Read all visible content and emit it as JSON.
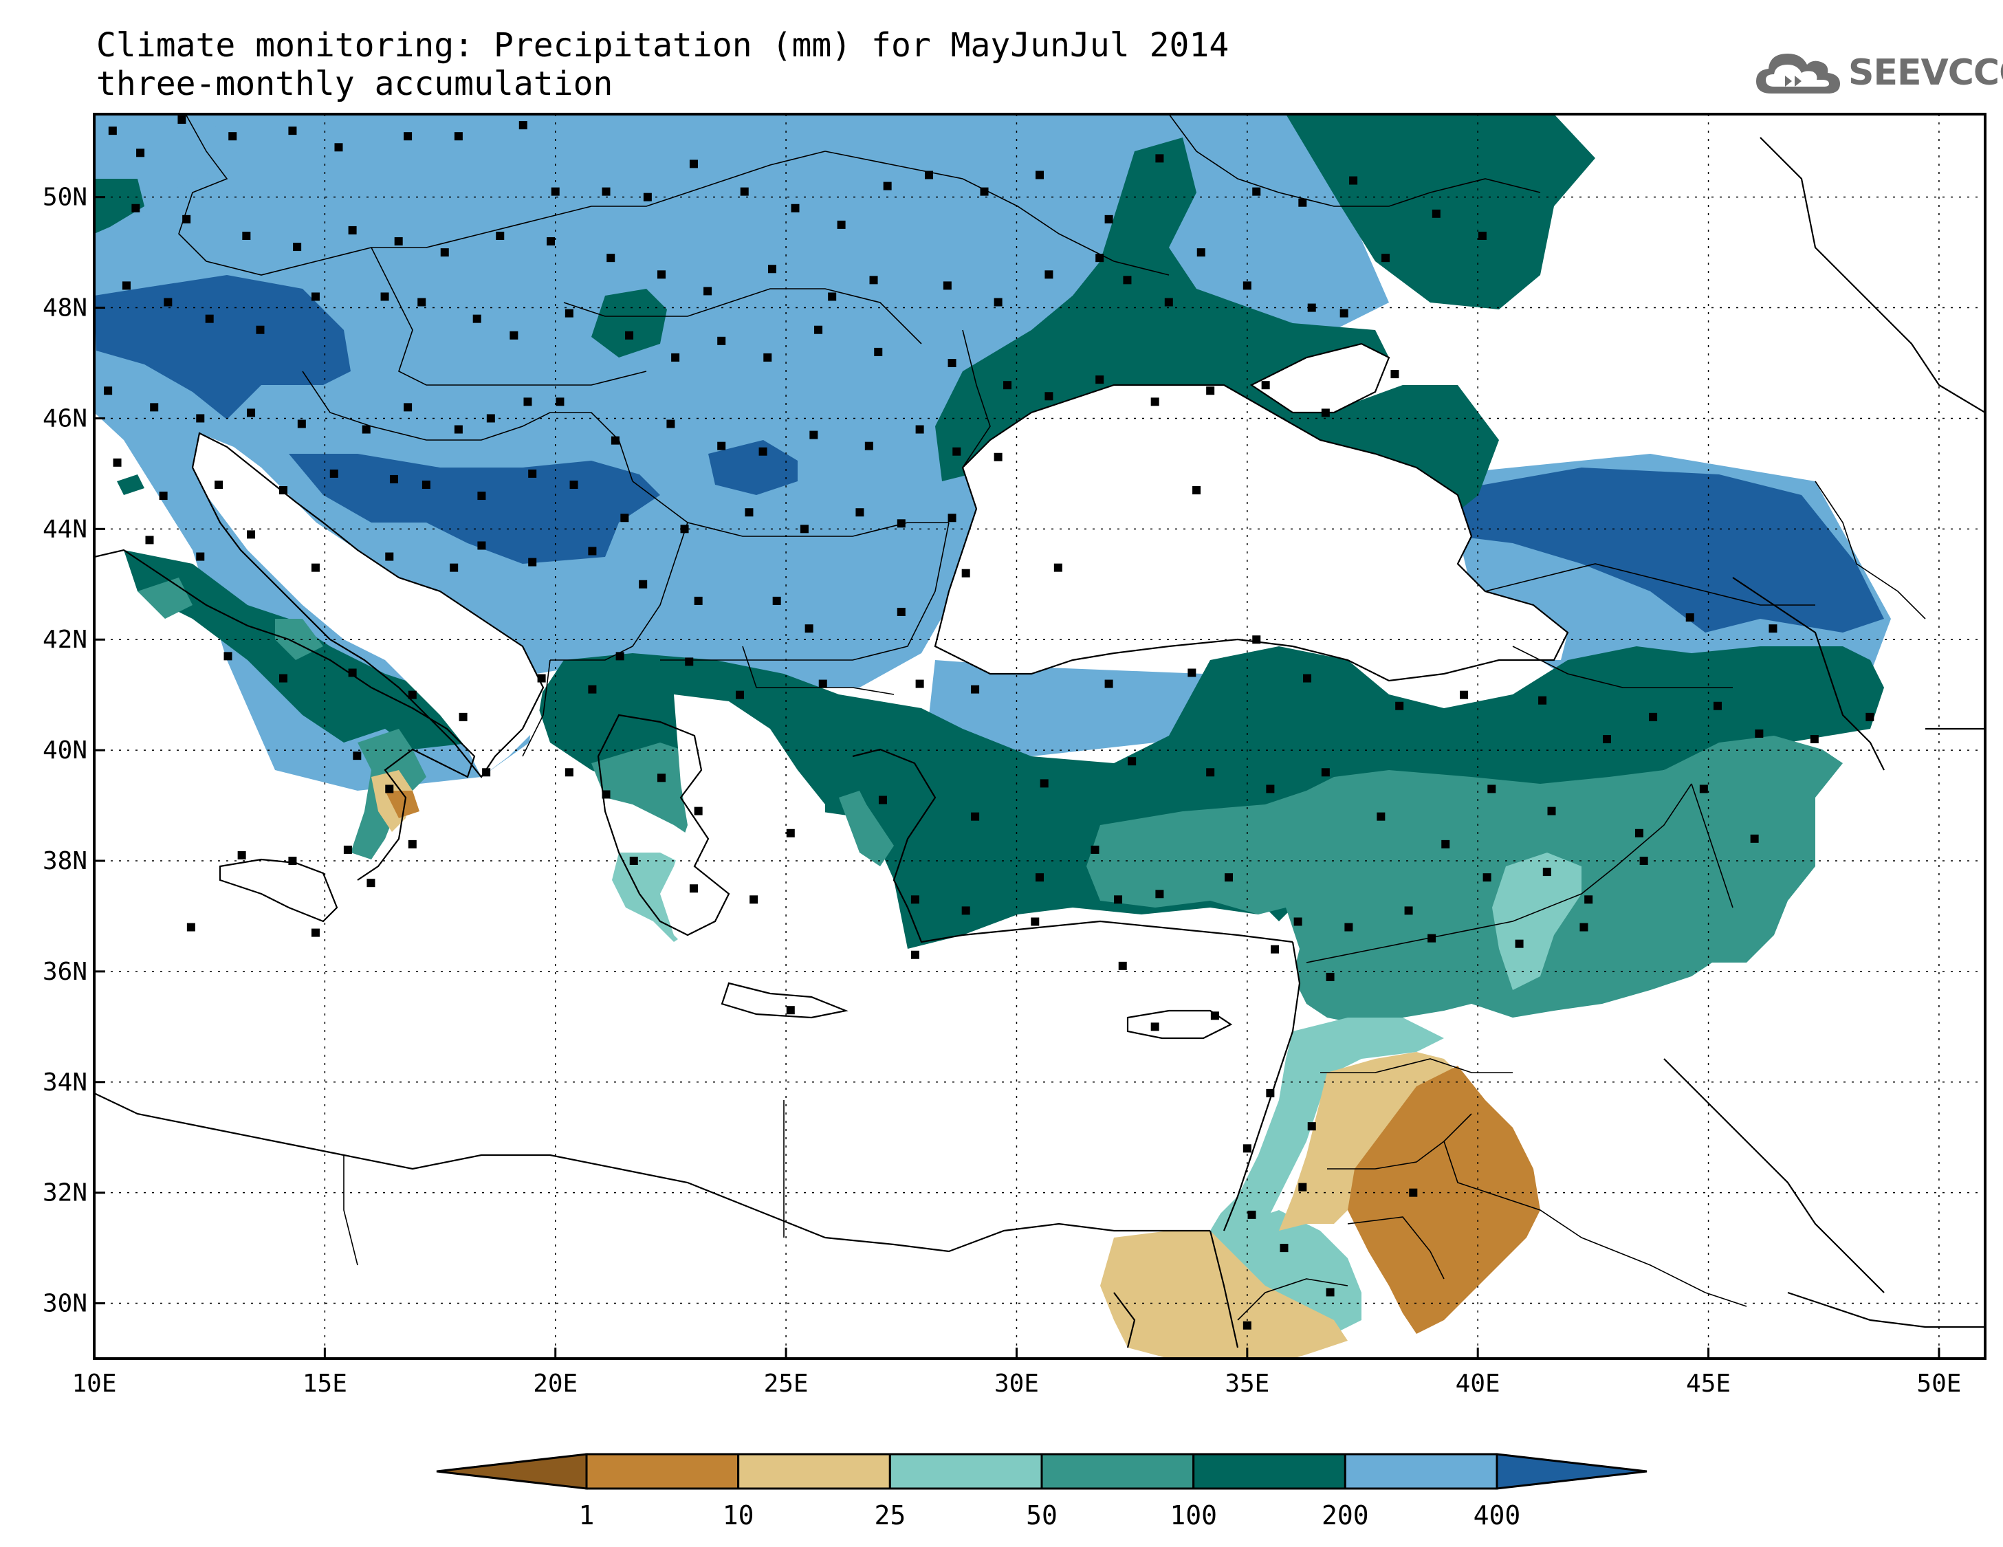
{
  "title": {
    "line1": "Climate monitoring: Precipitation (mm) for MayJunJul 2014",
    "line2": "three-monthly accumulation"
  },
  "logo": {
    "text": "SEEVCCC",
    "icon": "cloud-icon",
    "color": "#6f6f6f"
  },
  "map": {
    "lon_range": [
      10,
      51
    ],
    "lat_range": [
      29,
      51.5
    ],
    "x_ticks": [
      {
        "lon": 10,
        "label": "10E"
      },
      {
        "lon": 15,
        "label": "15E"
      },
      {
        "lon": 20,
        "label": "20E"
      },
      {
        "lon": 25,
        "label": "25E"
      },
      {
        "lon": 30,
        "label": "30E"
      },
      {
        "lon": 35,
        "label": "35E"
      },
      {
        "lon": 40,
        "label": "40E"
      },
      {
        "lon": 45,
        "label": "45E"
      },
      {
        "lon": 50,
        "label": "50E"
      }
    ],
    "y_ticks": [
      {
        "lat": 30,
        "label": "30N"
      },
      {
        "lat": 32,
        "label": "32N"
      },
      {
        "lat": 34,
        "label": "34N"
      },
      {
        "lat": 36,
        "label": "36N"
      },
      {
        "lat": 38,
        "label": "38N"
      },
      {
        "lat": 40,
        "label": "40N"
      },
      {
        "lat": 42,
        "label": "42N"
      },
      {
        "lat": 44,
        "label": "44N"
      },
      {
        "lat": 46,
        "label": "46N"
      },
      {
        "lat": 48,
        "label": "48N"
      },
      {
        "lat": 50,
        "label": "50N"
      }
    ],
    "grid": true
  },
  "legend": {
    "bins": [
      {
        "color": "#8b5a1e"
      },
      {
        "color": "#c18334"
      },
      {
        "color": "#e1c584"
      },
      {
        "color": "#80cbc2"
      },
      {
        "color": "#36968a"
      },
      {
        "color": "#00665c"
      },
      {
        "color": "#6aadd7"
      },
      {
        "color": "#1d5f9e"
      }
    ],
    "labels": [
      "1",
      "10",
      "25",
      "50",
      "100",
      "200",
      "400"
    ]
  },
  "colors": {
    "c_lt1": "#8b5a1e",
    "c_1_10": "#c18334",
    "c_10_25": "#e1c584",
    "c_25_50": "#80cbc2",
    "c_50_100": "#36968a",
    "c_100_200": "#00665c",
    "c_200_400": "#6aadd7",
    "c_gt400": "#1d5f9e"
  },
  "stations": [
    [
      10.4,
      51.2
    ],
    [
      11.0,
      50.8
    ],
    [
      11.9,
      51.4
    ],
    [
      13.0,
      51.1
    ],
    [
      14.3,
      51.2
    ],
    [
      15.3,
      50.9
    ],
    [
      16.8,
      51.1
    ],
    [
      17.9,
      51.1
    ],
    [
      19.3,
      51.3
    ],
    [
      20.0,
      50.1
    ],
    [
      21.1,
      50.1
    ],
    [
      22.0,
      50.0
    ],
    [
      23.0,
      50.6
    ],
    [
      24.1,
      50.1
    ],
    [
      25.2,
      49.8
    ],
    [
      26.2,
      49.5
    ],
    [
      27.2,
      50.2
    ],
    [
      28.1,
      50.4
    ],
    [
      29.3,
      50.1
    ],
    [
      30.5,
      50.4
    ],
    [
      32.0,
      49.6
    ],
    [
      33.1,
      50.7
    ],
    [
      34.0,
      49.0
    ],
    [
      35.2,
      50.1
    ],
    [
      36.2,
      49.9
    ],
    [
      37.3,
      50.3
    ],
    [
      38.0,
      48.9
    ],
    [
      39.1,
      49.7
    ],
    [
      40.1,
      49.3
    ],
    [
      10.9,
      49.8
    ],
    [
      12.0,
      49.6
    ],
    [
      13.3,
      49.3
    ],
    [
      14.4,
      49.1
    ],
    [
      15.6,
      49.4
    ],
    [
      16.6,
      49.2
    ],
    [
      17.6,
      49.0
    ],
    [
      18.8,
      49.3
    ],
    [
      19.9,
      49.2
    ],
    [
      21.2,
      48.9
    ],
    [
      22.3,
      48.6
    ],
    [
      23.3,
      48.3
    ],
    [
      24.7,
      48.7
    ],
    [
      26.0,
      48.2
    ],
    [
      26.9,
      48.5
    ],
    [
      28.5,
      48.4
    ],
    [
      29.6,
      48.1
    ],
    [
      30.7,
      48.6
    ],
    [
      31.8,
      48.9
    ],
    [
      32.4,
      48.5
    ],
    [
      33.3,
      48.1
    ],
    [
      35.0,
      48.4
    ],
    [
      36.4,
      48.0
    ],
    [
      37.1,
      47.9
    ],
    [
      10.7,
      48.4
    ],
    [
      11.6,
      48.1
    ],
    [
      12.5,
      47.8
    ],
    [
      13.6,
      47.6
    ],
    [
      14.8,
      48.2
    ],
    [
      16.3,
      48.2
    ],
    [
      17.1,
      48.1
    ],
    [
      18.3,
      47.8
    ],
    [
      19.1,
      47.5
    ],
    [
      20.3,
      47.9
    ],
    [
      21.6,
      47.5
    ],
    [
      22.6,
      47.1
    ],
    [
      23.6,
      47.4
    ],
    [
      24.6,
      47.1
    ],
    [
      25.7,
      47.6
    ],
    [
      27.0,
      47.2
    ],
    [
      28.6,
      47.0
    ],
    [
      29.8,
      46.6
    ],
    [
      30.7,
      46.4
    ],
    [
      31.8,
      46.7
    ],
    [
      33.0,
      46.3
    ],
    [
      34.2,
      46.5
    ],
    [
      35.4,
      46.6
    ],
    [
      36.7,
      46.1
    ],
    [
      38.2,
      46.8
    ],
    [
      10.3,
      46.5
    ],
    [
      11.3,
      46.2
    ],
    [
      12.3,
      46.0
    ],
    [
      13.4,
      46.1
    ],
    [
      14.5,
      45.9
    ],
    [
      15.9,
      45.8
    ],
    [
      16.8,
      46.2
    ],
    [
      17.9,
      45.8
    ],
    [
      18.6,
      46.0
    ],
    [
      19.4,
      46.3
    ],
    [
      20.1,
      46.3
    ],
    [
      21.3,
      45.6
    ],
    [
      22.5,
      45.9
    ],
    [
      23.6,
      45.5
    ],
    [
      24.5,
      45.4
    ],
    [
      25.6,
      45.7
    ],
    [
      26.8,
      45.5
    ],
    [
      27.9,
      45.8
    ],
    [
      28.7,
      45.4
    ],
    [
      29.6,
      45.3
    ],
    [
      10.5,
      45.2
    ],
    [
      11.5,
      44.6
    ],
    [
      12.7,
      44.8
    ],
    [
      14.1,
      44.7
    ],
    [
      15.2,
      45.0
    ],
    [
      16.5,
      44.9
    ],
    [
      17.2,
      44.8
    ],
    [
      18.4,
      44.6
    ],
    [
      19.5,
      45.0
    ],
    [
      20.4,
      44.8
    ],
    [
      21.5,
      44.2
    ],
    [
      22.8,
      44.0
    ],
    [
      24.2,
      44.3
    ],
    [
      25.4,
      44.0
    ],
    [
      26.6,
      44.3
    ],
    [
      27.5,
      44.1
    ],
    [
      28.6,
      44.2
    ],
    [
      33.9,
      44.7
    ],
    [
      11.2,
      43.8
    ],
    [
      12.3,
      43.5
    ],
    [
      13.4,
      43.9
    ],
    [
      14.8,
      43.3
    ],
    [
      16.4,
      43.5
    ],
    [
      17.8,
      43.3
    ],
    [
      18.4,
      43.7
    ],
    [
      19.5,
      43.4
    ],
    [
      20.8,
      43.6
    ],
    [
      21.9,
      43.0
    ],
    [
      23.1,
      42.7
    ],
    [
      24.8,
      42.7
    ],
    [
      25.5,
      42.2
    ],
    [
      27.5,
      42.5
    ],
    [
      28.9,
      43.2
    ],
    [
      30.9,
      43.3
    ],
    [
      44.6,
      42.4
    ],
    [
      46.4,
      42.2
    ],
    [
      12.9,
      41.7
    ],
    [
      14.1,
      41.3
    ],
    [
      15.6,
      41.4
    ],
    [
      16.9,
      41.0
    ],
    [
      18.0,
      40.6
    ],
    [
      19.7,
      41.3
    ],
    [
      20.8,
      41.1
    ],
    [
      21.4,
      41.7
    ],
    [
      22.9,
      41.6
    ],
    [
      24.0,
      41.0
    ],
    [
      25.8,
      41.2
    ],
    [
      27.9,
      41.2
    ],
    [
      29.1,
      41.1
    ],
    [
      32.0,
      41.2
    ],
    [
      33.8,
      41.4
    ],
    [
      35.2,
      42.0
    ],
    [
      36.3,
      41.3
    ],
    [
      38.3,
      40.8
    ],
    [
      39.7,
      41.0
    ],
    [
      41.4,
      40.9
    ],
    [
      42.8,
      40.2
    ],
    [
      43.8,
      40.6
    ],
    [
      45.2,
      40.8
    ],
    [
      46.1,
      40.3
    ],
    [
      47.3,
      40.2
    ],
    [
      48.5,
      40.6
    ],
    [
      15.7,
      39.9
    ],
    [
      16.4,
      39.3
    ],
    [
      18.5,
      39.6
    ],
    [
      20.3,
      39.6
    ],
    [
      21.1,
      39.2
    ],
    [
      22.3,
      39.5
    ],
    [
      23.1,
      38.9
    ],
    [
      25.1,
      38.5
    ],
    [
      27.1,
      39.1
    ],
    [
      29.1,
      38.8
    ],
    [
      30.6,
      39.4
    ],
    [
      31.7,
      38.2
    ],
    [
      32.5,
      39.8
    ],
    [
      34.2,
      39.6
    ],
    [
      35.5,
      39.3
    ],
    [
      36.7,
      39.6
    ],
    [
      37.9,
      38.8
    ],
    [
      39.3,
      38.3
    ],
    [
      40.3,
      39.3
    ],
    [
      41.6,
      38.9
    ],
    [
      43.5,
      38.5
    ],
    [
      44.9,
      39.3
    ],
    [
      46.0,
      38.4
    ],
    [
      13.2,
      38.1
    ],
    [
      14.3,
      38.0
    ],
    [
      15.5,
      38.2
    ],
    [
      16.0,
      37.6
    ],
    [
      16.9,
      38.3
    ],
    [
      21.7,
      38.0
    ],
    [
      23.0,
      37.5
    ],
    [
      24.3,
      37.3
    ],
    [
      27.8,
      37.3
    ],
    [
      28.9,
      37.1
    ],
    [
      30.5,
      37.7
    ],
    [
      32.2,
      37.3
    ],
    [
      33.1,
      37.4
    ],
    [
      34.6,
      37.7
    ],
    [
      36.1,
      36.9
    ],
    [
      37.2,
      36.8
    ],
    [
      38.5,
      37.1
    ],
    [
      40.2,
      37.7
    ],
    [
      41.5,
      37.8
    ],
    [
      42.4,
      37.3
    ],
    [
      43.6,
      38.0
    ],
    [
      12.1,
      36.8
    ],
    [
      14.8,
      36.7
    ],
    [
      25.1,
      35.3
    ],
    [
      27.8,
      36.3
    ],
    [
      30.4,
      36.9
    ],
    [
      32.3,
      36.1
    ],
    [
      33.0,
      35.0
    ],
    [
      34.3,
      35.2
    ],
    [
      35.6,
      36.4
    ],
    [
      36.8,
      35.9
    ],
    [
      39.0,
      36.6
    ],
    [
      40.9,
      36.5
    ],
    [
      42.3,
      36.8
    ],
    [
      35.5,
      33.8
    ],
    [
      36.4,
      33.2
    ],
    [
      35.0,
      32.8
    ],
    [
      36.2,
      32.1
    ],
    [
      35.1,
      31.6
    ],
    [
      35.8,
      31.0
    ],
    [
      38.6,
      32.0
    ],
    [
      36.8,
      30.2
    ],
    [
      35.0,
      29.6
    ]
  ],
  "pie_legend": []
}
